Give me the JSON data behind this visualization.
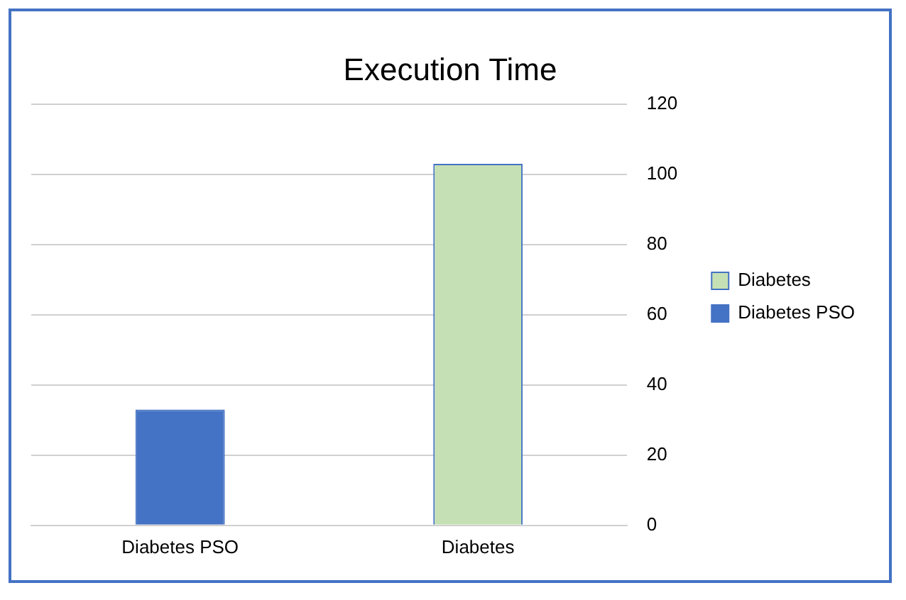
{
  "chart_data": {
    "type": "bar",
    "title": "Execution Time",
    "categories": [
      "Diabetes PSO",
      "Diabetes"
    ],
    "series": [
      {
        "name": "Diabetes",
        "color": "#c5e0b4",
        "values": [
          null,
          103
        ]
      },
      {
        "name": "Diabetes PSO",
        "color": "#4472c4",
        "values": [
          33,
          null
        ]
      }
    ],
    "ylim": [
      0,
      120
    ],
    "yticks": [
      0,
      20,
      40,
      60,
      80,
      100,
      120
    ],
    "grid": "y",
    "legend": "right"
  }
}
